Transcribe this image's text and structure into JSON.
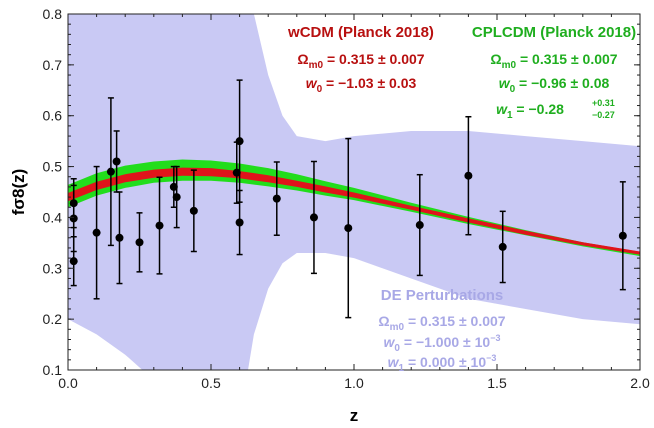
{
  "chart_data": {
    "type": "line",
    "xlabel": "z",
    "ylabel": "fσ8(z)",
    "xlim": [
      0.0,
      2.0
    ],
    "ylim": [
      0.1,
      0.8
    ],
    "x_ticks": [
      "0.0",
      "0.5",
      "1.0",
      "1.5",
      "2.0"
    ],
    "y_ticks": [
      "0.1",
      "0.2",
      "0.3",
      "0.4",
      "0.5",
      "0.6",
      "0.7",
      "0.8"
    ],
    "grid": false,
    "colors": {
      "wcdm": "#e0141b",
      "cplcdm": "#22dd1c",
      "de_band": "#c9c9f4",
      "de_text": "#a8a8e6",
      "wcdm_text": "#b81010",
      "cplcdm_text": "#1fae1f",
      "points": "#000000"
    },
    "series": [
      {
        "name": "wCDM (Planck 2018)",
        "style": "band",
        "x": [
          0.0,
          0.1,
          0.2,
          0.3,
          0.4,
          0.5,
          0.6,
          0.7,
          0.8,
          0.9,
          1.0,
          1.2,
          1.4,
          1.6,
          1.8,
          2.0
        ],
        "y": [
          0.44,
          0.462,
          0.477,
          0.486,
          0.49,
          0.489,
          0.484,
          0.476,
          0.466,
          0.455,
          0.444,
          0.419,
          0.394,
          0.37,
          0.348,
          0.33
        ],
        "err": [
          0.008,
          0.008,
          0.008,
          0.008,
          0.008,
          0.008,
          0.007,
          0.007,
          0.006,
          0.006,
          0.005,
          0.004,
          0.004,
          0.004,
          0.003,
          0.003
        ]
      },
      {
        "name": "CPLCDM (Planck 2018)",
        "style": "band",
        "x": [
          0.0,
          0.1,
          0.2,
          0.3,
          0.4,
          0.5,
          0.6,
          0.7,
          0.8,
          0.9,
          1.0,
          1.2,
          1.4,
          1.6,
          1.8,
          2.0
        ],
        "y": [
          0.442,
          0.465,
          0.48,
          0.489,
          0.493,
          0.492,
          0.487,
          0.479,
          0.469,
          0.457,
          0.446,
          0.42,
          0.394,
          0.37,
          0.347,
          0.328
        ],
        "err": [
          0.022,
          0.022,
          0.022,
          0.021,
          0.021,
          0.02,
          0.019,
          0.018,
          0.016,
          0.014,
          0.012,
          0.009,
          0.007,
          0.005,
          0.004,
          0.004
        ]
      },
      {
        "name": "DE Perturbations",
        "style": "band",
        "x": [
          0.0,
          0.1,
          0.2,
          0.3,
          0.4,
          0.5,
          0.6,
          0.65,
          0.7,
          0.75,
          0.8,
          0.9,
          1.0,
          1.2,
          1.4,
          1.6,
          1.8,
          2.0
        ],
        "upper": [
          0.95,
          0.95,
          0.95,
          0.95,
          0.95,
          0.95,
          0.95,
          0.8,
          0.68,
          0.6,
          0.56,
          0.55,
          0.56,
          0.57,
          0.57,
          0.56,
          0.55,
          0.54
        ],
        "lower": [
          0.2,
          0.17,
          0.13,
          0.08,
          0.04,
          0.0,
          0.0,
          0.17,
          0.26,
          0.31,
          0.33,
          0.33,
          0.32,
          0.28,
          0.24,
          0.22,
          0.2,
          0.19
        ]
      },
      {
        "name": "data",
        "style": "points",
        "x": [
          0.02,
          0.02,
          0.02,
          0.1,
          0.15,
          0.17,
          0.18,
          0.25,
          0.32,
          0.37,
          0.38,
          0.44,
          0.59,
          0.6,
          0.6,
          0.73,
          0.86,
          0.98,
          1.23,
          1.4,
          1.52,
          1.94
        ],
        "y": [
          0.428,
          0.398,
          0.314,
          0.37,
          0.49,
          0.51,
          0.36,
          0.351,
          0.384,
          0.46,
          0.44,
          0.413,
          0.488,
          0.55,
          0.39,
          0.437,
          0.4,
          0.379,
          0.385,
          0.482,
          0.342,
          0.364
        ],
        "yerr": [
          0.048,
          0.065,
          0.048,
          0.13,
          0.145,
          0.06,
          0.09,
          0.058,
          0.095,
          0.04,
          0.06,
          0.08,
          0.06,
          0.12,
          0.063,
          0.072,
          0.11,
          0.176,
          0.099,
          0.116,
          0.07,
          0.106
        ]
      }
    ]
  },
  "annotations": {
    "wcdm": {
      "title": "wCDM (Planck 2018)",
      "omega_sym": "Ω",
      "omega_sub": "m0",
      "omega_val": " = 0.315 ± 0.007",
      "w0_sym": "w",
      "w0_sub": "0",
      "w0_val": " = −1.03 ± 0.03"
    },
    "cplcdm": {
      "title": "CPLCDM (Planck 2018)",
      "omega_sym": "Ω",
      "omega_sub": "m0",
      "omega_val": " = 0.315 ± 0.007",
      "w0_sym": "w",
      "w0_sub": "0",
      "w0_val": " = −0.96 ± 0.08",
      "w1_sym": "w",
      "w1_sub": "1",
      "w1_val": " = −0.28",
      "w1_sup_err": "+0.31",
      "w1_sub_err": "−0.27"
    },
    "de": {
      "title": "DE Perturbations",
      "omega_sym": "Ω",
      "omega_sub": "m0",
      "omega_val": " = 0.315 ± 0.007",
      "w0_sym": "w",
      "w0_sub": "0",
      "w0_val": " = −1.000 ± 10",
      "w0_exp": "−3",
      "w1_sym": "w",
      "w1_sub": "1",
      "w1_val": " = 0.000 ± 10",
      "w1_exp": "−3"
    }
  }
}
